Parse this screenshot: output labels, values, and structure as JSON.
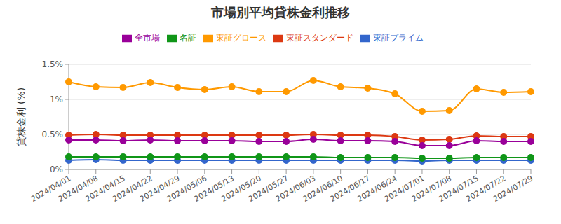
{
  "chart_data": {
    "type": "line",
    "title": "市場別平均貸株金利推移",
    "y_label": "貸株金利 (%)",
    "x": [
      "2024/04/01",
      "2024/04/08",
      "2024/04/15",
      "2024/04/22",
      "2024/04/29",
      "2024/05/06",
      "2024/05/13",
      "2024/05/20",
      "2024/05/27",
      "2024/06/03",
      "2024/06/10",
      "2024/06/17",
      "2024/06/24",
      "2024/07/01",
      "2024/07/08",
      "2024/07/15",
      "2024/07/22",
      "2024/07/29"
    ],
    "series": [
      {
        "name": "東証プライム",
        "color": "#3366cc",
        "values": [
          0.13,
          0.14,
          0.13,
          0.13,
          0.13,
          0.13,
          0.13,
          0.13,
          0.13,
          0.13,
          0.13,
          0.13,
          0.13,
          0.12,
          0.13,
          0.13,
          0.13,
          0.13
        ]
      },
      {
        "name": "東証スタンダード",
        "color": "#dc3912",
        "values": [
          0.49,
          0.5,
          0.49,
          0.49,
          0.49,
          0.49,
          0.49,
          0.49,
          0.49,
          0.5,
          0.49,
          0.49,
          0.47,
          0.42,
          0.43,
          0.48,
          0.47,
          0.47
        ]
      },
      {
        "name": "東証グロース",
        "color": "#ff9900",
        "values": [
          1.25,
          1.18,
          1.17,
          1.24,
          1.17,
          1.14,
          1.18,
          1.11,
          1.11,
          1.27,
          1.18,
          1.16,
          1.08,
          0.83,
          0.84,
          1.15,
          1.1,
          1.11
        ]
      },
      {
        "name": "名証",
        "color": "#109618",
        "values": [
          0.18,
          0.18,
          0.18,
          0.18,
          0.18,
          0.18,
          0.18,
          0.18,
          0.18,
          0.18,
          0.17,
          0.17,
          0.17,
          0.16,
          0.16,
          0.17,
          0.17,
          0.17
        ]
      },
      {
        "name": "全市場",
        "color": "#990099",
        "values": [
          0.42,
          0.42,
          0.41,
          0.42,
          0.41,
          0.41,
          0.41,
          0.4,
          0.4,
          0.43,
          0.41,
          0.41,
          0.4,
          0.34,
          0.34,
          0.41,
          0.4,
          0.4
        ]
      }
    ],
    "ylim": [
      0,
      1.5
    ],
    "yticks": [
      {
        "value": 0,
        "label": "0%"
      },
      {
        "value": 0.5,
        "label": "0.5%"
      },
      {
        "value": 1,
        "label": "1%"
      },
      {
        "value": 1.5,
        "label": "1.5%"
      }
    ],
    "grid": true,
    "legend": "top",
    "marker": "circle",
    "line_style": "smooth"
  }
}
